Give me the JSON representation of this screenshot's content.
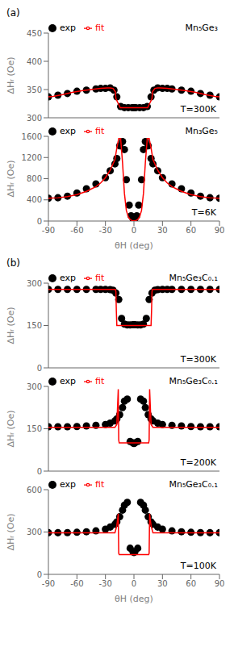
{
  "chart_data": [
    {
      "type": "line",
      "title": "(a)",
      "annotations": [
        "Mn₅Ge₃",
        "T=300K"
      ],
      "ylabel": "ΔHᵣ (Oe)",
      "xlim": [
        -90,
        90
      ],
      "xticks": [
        -90,
        -60,
        -30,
        0,
        30,
        60,
        90
      ],
      "ylim": [
        300,
        450
      ],
      "yticks": [
        300,
        350,
        400,
        450
      ],
      "legend": "top",
      "tick_labels": "y",
      "series": [
        {
          "name": "exp",
          "type": "scatter",
          "color": "black",
          "x": [
            -90,
            -80,
            -70,
            -60,
            -50,
            -40,
            -35,
            -30,
            -25,
            -21,
            -18,
            -14,
            -10,
            -6,
            -2,
            0,
            2,
            6,
            10,
            14,
            18,
            21,
            25,
            30,
            35,
            40,
            50,
            60,
            70,
            80,
            90
          ],
          "values": [
            337,
            340,
            343,
            347,
            349,
            351,
            352,
            352,
            353,
            349,
            337,
            320,
            318,
            318,
            318,
            318,
            318,
            318,
            318,
            320,
            337,
            349,
            353,
            352,
            352,
            351,
            349,
            347,
            343,
            340,
            337
          ]
        },
        {
          "name": "fit",
          "type": "line",
          "color": "red",
          "x": [
            -90,
            -85,
            -75,
            -65,
            -55,
            -45,
            -35,
            -28,
            -25,
            -22,
            -19.5,
            -19.0,
            -15.0,
            -14.5,
            -14.0,
            14.0,
            14.5,
            15.0,
            19.0,
            19.5,
            22,
            25,
            28,
            35,
            45,
            55,
            65,
            75,
            85,
            90
          ],
          "values": [
            337,
            338,
            341,
            345,
            348,
            350,
            352,
            353,
            353,
            352,
            346,
            334,
            320,
            318,
            318,
            318,
            318,
            320,
            334,
            346,
            352,
            353,
            353,
            352,
            350,
            348,
            345,
            341,
            338,
            337
          ]
        }
      ]
    },
    {
      "type": "line",
      "annotations": [
        "Mn₃Ge₅",
        "T=6K"
      ],
      "xlabel": "θH (deg)",
      "ylabel": "ΔHᵣ (Oe)",
      "xlim": [
        -90,
        90
      ],
      "xticks": [
        -90,
        -60,
        -30,
        0,
        30,
        60,
        90
      ],
      "ylim": [
        0,
        1600
      ],
      "yticks": [
        0,
        400,
        800,
        1200,
        1600
      ],
      "legend": "top",
      "series": [
        {
          "name": "exp",
          "type": "scatter",
          "color": "black",
          "x": [
            -90,
            -80,
            -70,
            -60,
            -50,
            -40,
            -30,
            -25,
            -20,
            -18,
            -15,
            -12,
            -10,
            -8,
            -5,
            -3,
            -1,
            0,
            1,
            3,
            5,
            8,
            10,
            12,
            15,
            18,
            20,
            25,
            30,
            40,
            50,
            60,
            70,
            80,
            90
          ],
          "values": [
            430,
            440,
            470,
            530,
            610,
            700,
            820,
            950,
            1080,
            1180,
            1420,
            1500,
            1350,
            780,
            300,
            100,
            45,
            30,
            45,
            100,
            300,
            780,
            1350,
            1500,
            1420,
            1180,
            1080,
            950,
            820,
            700,
            610,
            530,
            470,
            440,
            430
          ]
        },
        {
          "name": "fit",
          "type": "line",
          "color": "red",
          "x": [
            -90,
            -80,
            -70,
            -60,
            -50,
            -40,
            -35,
            -30,
            -25,
            -20,
            -18,
            -16,
            -14,
            -12,
            -10,
            -8,
            -6,
            -4,
            -2,
            0,
            2,
            4,
            6,
            8,
            10,
            12,
            14,
            16,
            18,
            20,
            25,
            30,
            35,
            40,
            50,
            60,
            70,
            80,
            90
          ],
          "values": [
            430,
            440,
            460,
            500,
            560,
            650,
            720,
            820,
            960,
            1160,
            1380,
            1560,
            1560,
            1100,
            520,
            200,
            80,
            30,
            8,
            4,
            8,
            30,
            80,
            200,
            520,
            1100,
            1560,
            1560,
            1380,
            1160,
            960,
            820,
            720,
            650,
            560,
            500,
            460,
            440,
            430
          ]
        }
      ]
    },
    {
      "type": "line",
      "title": "(b)",
      "annotations": [
        "Mn₅Ge₃C₀.₁",
        "T=300K"
      ],
      "ylabel": "ΔHᵣ (Oe)",
      "xlim": [
        -90,
        90
      ],
      "xticks": [
        -90,
        -60,
        -30,
        0,
        30,
        60,
        90
      ],
      "ylim": [
        0,
        300
      ],
      "yticks": [
        0,
        150,
        300
      ],
      "legend": "top",
      "tick_labels": "y",
      "series": [
        {
          "name": "exp",
          "type": "scatter",
          "color": "black",
          "x": [
            -90,
            -80,
            -70,
            -60,
            -50,
            -40,
            -35,
            -30,
            -25,
            -22,
            -19,
            -16,
            -13,
            -10,
            -7,
            -4,
            -1,
            0,
            1,
            4,
            7,
            10,
            13,
            16,
            19,
            22,
            25,
            30,
            35,
            40,
            50,
            60,
            70,
            80,
            90
          ],
          "values": [
            278,
            278,
            278,
            278,
            278,
            278,
            278,
            278,
            277,
            275,
            265,
            242,
            175,
            155,
            152,
            152,
            153,
            153,
            153,
            152,
            152,
            155,
            175,
            242,
            265,
            275,
            277,
            278,
            278,
            278,
            278,
            278,
            278,
            278,
            278
          ]
        },
        {
          "name": "fit",
          "type": "line",
          "color": "red",
          "x": [
            -90,
            -80,
            -70,
            -60,
            -50,
            -40,
            -30,
            -25,
            -22,
            -20,
            -19.5,
            -19.0,
            -18.5,
            -18.0,
            -17.5,
            17.5,
            18.0,
            18.5,
            19.0,
            19.5,
            20,
            22,
            25,
            30,
            40,
            50,
            60,
            70,
            80,
            90
          ],
          "values": [
            278,
            278,
            278,
            278,
            278,
            278,
            278,
            278,
            278,
            278,
            278,
            270,
            200,
            150,
            150,
            150,
            150,
            200,
            270,
            278,
            278,
            278,
            278,
            278,
            278,
            278,
            278,
            278,
            278,
            278
          ]
        }
      ]
    },
    {
      "type": "line",
      "annotations": [
        "Mn₅Ge₃C₀.₁",
        "T=200K"
      ],
      "ylabel": "ΔHᵣ (Oe)",
      "xlim": [
        -90,
        90
      ],
      "xticks": [
        -90,
        -60,
        -30,
        0,
        30,
        60,
        90
      ],
      "ylim": [
        0,
        300
      ],
      "yticks": [
        0,
        150,
        300
      ],
      "legend": "top",
      "tick_labels": "y",
      "series": [
        {
          "name": "exp",
          "type": "scatter",
          "color": "black",
          "x": [
            -90,
            -80,
            -70,
            -60,
            -50,
            -40,
            -30,
            -25,
            -20,
            -18,
            -15,
            -12,
            -10,
            -7,
            -4,
            -1,
            0,
            1,
            4,
            7,
            10,
            12,
            15,
            18,
            20,
            25,
            30,
            40,
            50,
            60,
            70,
            80,
            90
          ],
          "values": [
            157,
            157,
            157,
            158,
            160,
            162,
            165,
            170,
            178,
            185,
            200,
            225,
            248,
            255,
            105,
            100,
            98,
            100,
            105,
            255,
            248,
            225,
            200,
            185,
            178,
            170,
            165,
            162,
            160,
            158,
            157,
            157,
            157
          ]
        },
        {
          "name": "fit",
          "type": "line",
          "color": "red",
          "x": [
            -90,
            -80,
            -70,
            -60,
            -50,
            -40,
            -30,
            -25,
            -22,
            -20,
            -18,
            -16.5,
            -16.0,
            -15.5,
            15.5,
            16.0,
            16.5,
            18,
            20,
            22,
            25,
            30,
            40,
            50,
            60,
            70,
            80,
            90
          ],
          "values": [
            155,
            155,
            155,
            155,
            155,
            155,
            155,
            155,
            155,
            155,
            165,
            290,
            110,
            100,
            100,
            110,
            290,
            165,
            155,
            155,
            155,
            155,
            155,
            155,
            155,
            155,
            155,
            155
          ]
        }
      ]
    },
    {
      "type": "line",
      "annotations": [
        "Mn₅Ge₃C₀.₁",
        "T=100K"
      ],
      "xlabel": "θH (deg)",
      "ylabel": "ΔHᵣ (Oe)",
      "xlim": [
        -90,
        90
      ],
      "xticks": [
        -90,
        -60,
        -30,
        0,
        30,
        60,
        90
      ],
      "ylim": [
        0,
        600
      ],
      "yticks": [
        0,
        300,
        600
      ],
      "legend": "top",
      "series": [
        {
          "name": "exp",
          "type": "scatter",
          "color": "black",
          "x": [
            -90,
            -80,
            -70,
            -60,
            -50,
            -40,
            -30,
            -25,
            -20,
            -18,
            -15,
            -12,
            -10,
            -7,
            -4,
            -1,
            0,
            1,
            4,
            7,
            10,
            12,
            15,
            18,
            20,
            25,
            30,
            40,
            50,
            60,
            70,
            80,
            90
          ],
          "values": [
            295,
            295,
            296,
            298,
            302,
            308,
            320,
            335,
            355,
            372,
            408,
            455,
            490,
            510,
            185,
            160,
            155,
            160,
            185,
            510,
            490,
            455,
            408,
            372,
            355,
            335,
            320,
            308,
            302,
            298,
            296,
            295,
            295
          ]
        },
        {
          "name": "fit",
          "type": "line",
          "color": "red",
          "x": [
            -90,
            -80,
            -70,
            -60,
            -50,
            -40,
            -30,
            -25,
            -22,
            -20,
            -18,
            -16.5,
            -16.0,
            -15.5,
            15.5,
            16.0,
            16.5,
            18,
            20,
            22,
            25,
            30,
            40,
            50,
            60,
            70,
            80,
            90
          ],
          "values": [
            295,
            295,
            295,
            295,
            295,
            295,
            295,
            295,
            295,
            295,
            345,
            430,
            150,
            140,
            140,
            150,
            430,
            345,
            295,
            295,
            295,
            295,
            295,
            295,
            295,
            295,
            295,
            295
          ]
        }
      ]
    }
  ]
}
